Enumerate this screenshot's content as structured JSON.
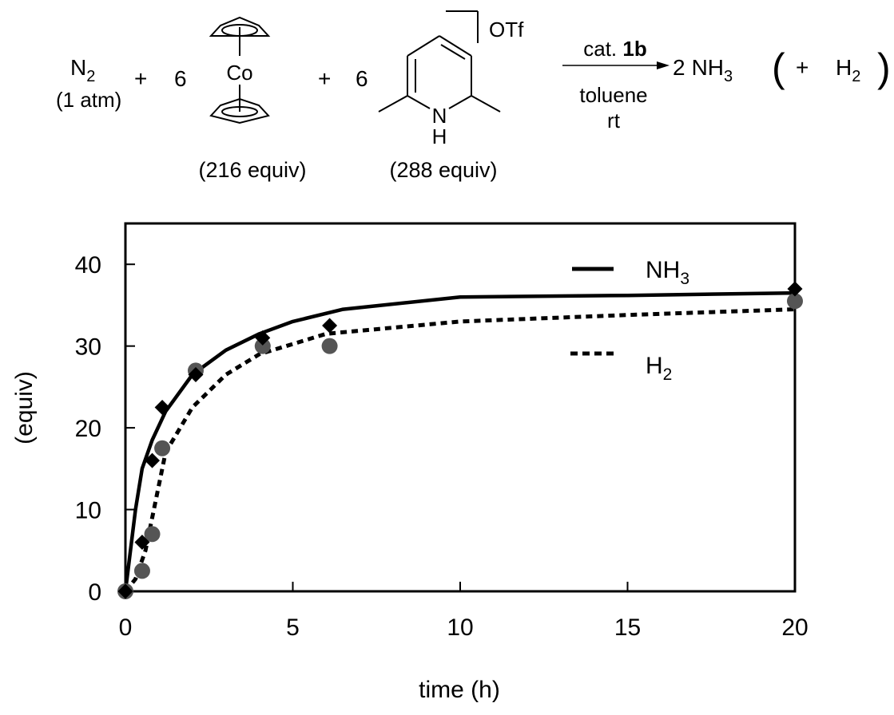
{
  "scheme": {
    "reactant1": {
      "formula": "N",
      "subscript": "2",
      "note": "(1 atm)"
    },
    "plus": "+",
    "cobaltocene": {
      "coefficient": "6",
      "metal": "Co",
      "equiv": "(216 equiv)"
    },
    "lutidinium": {
      "coefficient": "6",
      "nitrogen": "N",
      "hydrogen": "H",
      "counterion": "OTf",
      "equiv": "(288 equiv)"
    },
    "conditions": {
      "catalyst_prefix": "cat. ",
      "catalyst_id": "1b",
      "solvent": "toluene",
      "temperature": "rt"
    },
    "product": {
      "coefficient": "2",
      "formula": "NH",
      "subscript": "3"
    },
    "byproduct": {
      "open": "(",
      "plus": "+",
      "formula": "H",
      "subscript": "2",
      "close": ")"
    }
  },
  "chart_data": {
    "type": "line",
    "title": "",
    "xlabel": "time (h)",
    "ylabel": "(equiv)",
    "xlim": [
      0,
      20
    ],
    "ylim": [
      0,
      45
    ],
    "x_ticks": [
      0,
      5,
      10,
      15,
      20
    ],
    "y_ticks": [
      0,
      10,
      20,
      30,
      40
    ],
    "grid": false,
    "legend_position": "top-right",
    "series": [
      {
        "name": "NH3",
        "legend_text": "NH",
        "legend_subscript": "3",
        "style": "solid",
        "marker": "diamond",
        "color": "#000000",
        "points": [
          [
            0,
            0
          ],
          [
            0.5,
            6
          ],
          [
            0.8,
            16
          ],
          [
            1.1,
            22.5
          ],
          [
            2.1,
            26.5
          ],
          [
            4.1,
            31
          ],
          [
            6.1,
            32.5
          ],
          [
            20,
            37
          ]
        ],
        "fit": [
          [
            0,
            0
          ],
          [
            0.3,
            10
          ],
          [
            0.5,
            15
          ],
          [
            0.8,
            18.5
          ],
          [
            1.2,
            22
          ],
          [
            2,
            26.5
          ],
          [
            3,
            29.5
          ],
          [
            4,
            31.5
          ],
          [
            5,
            33
          ],
          [
            6.5,
            34.5
          ],
          [
            10,
            36
          ],
          [
            15,
            36.2
          ],
          [
            20,
            36.5
          ]
        ]
      },
      {
        "name": "H2",
        "legend_text": "H",
        "legend_subscript": "2",
        "style": "dotted",
        "marker": "circle",
        "color": "#555555",
        "points": [
          [
            0,
            0
          ],
          [
            0.5,
            2.5
          ],
          [
            0.8,
            7
          ],
          [
            1.1,
            17.5
          ],
          [
            2.1,
            27
          ],
          [
            4.1,
            30
          ],
          [
            6.1,
            30
          ],
          [
            20,
            35.5
          ]
        ],
        "fit": [
          [
            0,
            0
          ],
          [
            0.3,
            1.5
          ],
          [
            0.6,
            5
          ],
          [
            0.9,
            11
          ],
          [
            1.2,
            17
          ],
          [
            2,
            22.5
          ],
          [
            3,
            26.5
          ],
          [
            4,
            29
          ],
          [
            6,
            31.5
          ],
          [
            10,
            33
          ],
          [
            15,
            33.8
          ],
          [
            20,
            34.5
          ]
        ]
      }
    ]
  }
}
